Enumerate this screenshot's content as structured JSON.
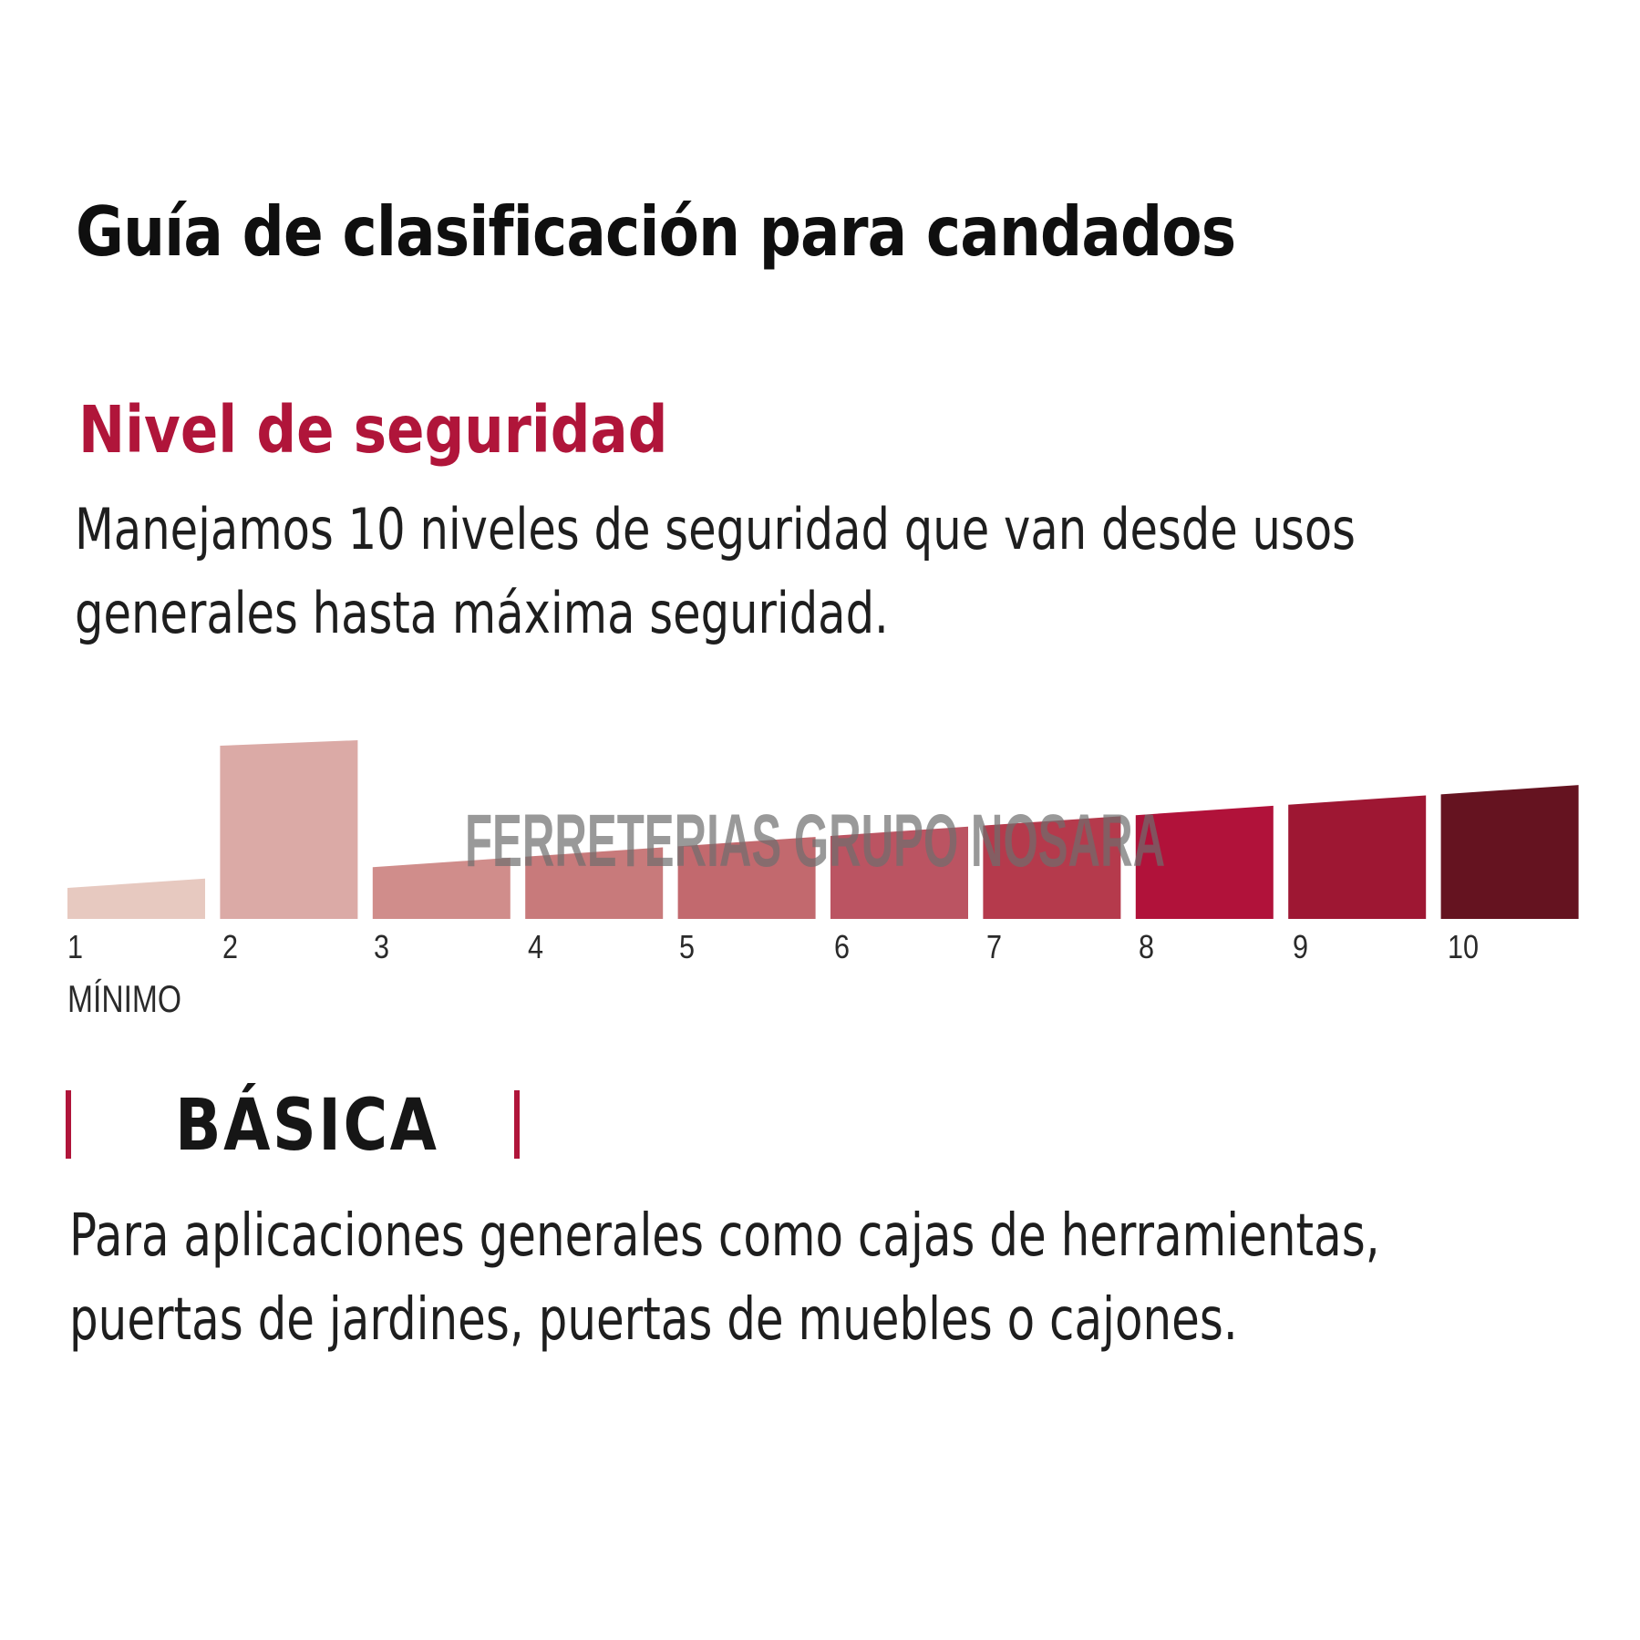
{
  "header": {
    "title": "Guía de clasificación para candados"
  },
  "section": {
    "subtitle": "Nivel de seguridad",
    "description": "Manejamos 10 niveles de seguridad que van desde usos generales hasta máxima seguridad."
  },
  "levels": {
    "items": [
      {
        "label": "1",
        "color": "#e7c9c0"
      },
      {
        "label": "2",
        "color": "#dbaaa6"
      },
      {
        "label": "3",
        "color": "#d08d8b"
      },
      {
        "label": "4",
        "color": "#c87a7b"
      },
      {
        "label": "5",
        "color": "#c2696e"
      },
      {
        "label": "6",
        "color": "#bb5462"
      },
      {
        "label": "7",
        "color": "#b53a4c"
      },
      {
        "label": "8",
        "color": "#b1123a"
      },
      {
        "label": "9",
        "color": "#9e1733"
      },
      {
        "label": "10",
        "color": "#651320"
      }
    ],
    "highlighted": "2",
    "min_label": "MÍNIMO"
  },
  "watermark": "FERRETERIAS GRUPO NOSARA",
  "category": {
    "name": "BÁSICA",
    "description": "Para aplicaciones generales como cajas de herramientas, puertas de jardines, puertas de muebles o cajones.",
    "accent_color": "#b0153a"
  }
}
